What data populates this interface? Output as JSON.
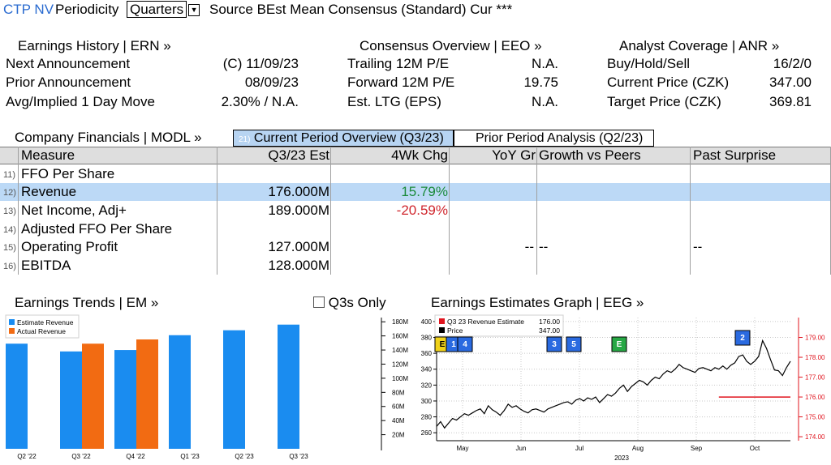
{
  "topbar": {
    "ticker": "CTP NV",
    "periodicity_label": "Periodicity",
    "periodicity_value": "Quarters",
    "source_text": "Source BEst Mean Consensus (Standard) Cur ***"
  },
  "earnings_history": {
    "title": "Earnings History | ERN »",
    "rows": [
      {
        "label": "Next Announcement",
        "value": "(C)  11/09/23"
      },
      {
        "label": "Prior Announcement",
        "value": "08/09/23"
      },
      {
        "label": "Avg/Implied 1 Day Move",
        "value": "2.30% / N.A."
      }
    ]
  },
  "consensus_overview": {
    "title": "Consensus Overview | EEO »",
    "rows": [
      {
        "label": "Trailing 12M P/E",
        "value": "N.A."
      },
      {
        "label": "Forward 12M P/E",
        "value": "19.75"
      },
      {
        "label": "Est. LTG (EPS)",
        "value": "N.A."
      }
    ]
  },
  "analyst_coverage": {
    "title": "Analyst Coverage | ANR »",
    "rows": [
      {
        "label": "Buy/Hold/Sell",
        "value": "16/2/0"
      },
      {
        "label": "Current Price (CZK)",
        "value": "347.00"
      },
      {
        "label": "Target Price (CZK)",
        "value": "369.81"
      }
    ]
  },
  "company_financials": {
    "title": "Company Financials | MODL »",
    "tabs": [
      {
        "num": "21)",
        "label": "Current Period Overview (Q3/23)"
      },
      {
        "num": "",
        "label": "Prior Period Analysis (Q2/23)"
      }
    ],
    "columns": [
      "Measure",
      "Q3/23 Est",
      "4Wk Chg",
      "YoY Gr",
      "Growth vs Peers",
      "Past Surprise"
    ],
    "rows": [
      {
        "num": "11)",
        "measure": "FFO Per Share",
        "est": "",
        "chg": "",
        "yoy": "",
        "peers": "",
        "surprise": ""
      },
      {
        "num": "12)",
        "measure": "Revenue",
        "est": "176.000M",
        "chg": "15.79%",
        "yoy": "",
        "peers": "",
        "surprise": ""
      },
      {
        "num": "13)",
        "measure": "Net Income, Adj+",
        "est": "189.000M",
        "chg": "-20.59%",
        "yoy": "",
        "peers": "",
        "surprise": ""
      },
      {
        "num": "14)",
        "measure": "Adjusted FFO Per Share",
        "est": "",
        "chg": "",
        "yoy": "",
        "peers": "",
        "surprise": ""
      },
      {
        "num": "15)",
        "measure": "Operating Profit",
        "est": "127.000M",
        "chg": "",
        "yoy": "--",
        "peers": "--",
        "surprise": "--"
      },
      {
        "num": "16)",
        "measure": "EBITDA",
        "est": "128.000M",
        "chg": "",
        "yoy": "",
        "peers": "",
        "surprise": ""
      }
    ]
  },
  "earnings_trends": {
    "title": "Earnings Trends | EM »",
    "checkbox_label": "Q3s Only",
    "checkbox_checked": false
  },
  "earnings_estimates_graph": {
    "title": "Earnings Estimates Graph | EEG »"
  },
  "colors": {
    "estimate": "#1a8cf0",
    "actual": "#f26b12",
    "price_line": "#000000",
    "estimate_line": "#e0141e",
    "right_axis": "#e0141e",
    "event_blue": "#2a6ae0",
    "event_yellow": "#f0d21a",
    "event_green": "#27a845"
  },
  "chart_data": [
    {
      "type": "bar",
      "title": "",
      "categories": [
        "Q2 '22",
        "Q3 '22",
        "Q4 '22",
        "Q1 '23",
        "Q2 '23",
        "Q3 '23"
      ],
      "series": [
        {
          "name": "Estimate Revenue",
          "values": [
            149,
            138,
            140,
            161,
            168,
            176
          ]
        },
        {
          "name": "Actual Revenue",
          "values": [
            null,
            149,
            155,
            null,
            null,
            null
          ]
        }
      ],
      "ylim": [
        0,
        186
      ],
      "yticks": [
        20,
        40,
        60,
        80,
        100,
        120,
        140,
        160,
        180
      ],
      "ytick_labels": [
        "20M",
        "40M",
        "60M",
        "80M",
        "100M",
        "120M",
        "140M",
        "160M",
        "180M"
      ],
      "legend": "top-left",
      "grid": false
    },
    {
      "type": "line",
      "title": "",
      "xlabel": "2023",
      "x_ticks": [
        "May",
        "Jun",
        "Jul",
        "Aug",
        "Sep",
        "Oct"
      ],
      "y_left_lim": [
        250,
        405
      ],
      "y_left_ticks": [
        260,
        280,
        300,
        320,
        340,
        360,
        380,
        400
      ],
      "y_right_lim": [
        173.8,
        180
      ],
      "y_right_ticks": [
        "174.00",
        "175.00",
        "176.00",
        "177.00",
        "178.00",
        "179.00"
      ],
      "legend": "top-left",
      "legend_entries": [
        {
          "name": "Q3 23 Revenue Estimate",
          "value": "176.00"
        },
        {
          "name": "Price",
          "value": "347.00"
        }
      ],
      "series": [
        {
          "name": "Price",
          "x": [
            0,
            2,
            4,
            6,
            8,
            10,
            12,
            14,
            16,
            18,
            20,
            22,
            24,
            26,
            28,
            30,
            32,
            34,
            36,
            38,
            40,
            42,
            44,
            46,
            48,
            50,
            52,
            54,
            56,
            58,
            60,
            62,
            64,
            66,
            68,
            70,
            72,
            74,
            76,
            78,
            80,
            82,
            84,
            86,
            88,
            90,
            92,
            94,
            96,
            98,
            100,
            102,
            104,
            106,
            108,
            110,
            112,
            114,
            116,
            118,
            120,
            122,
            124,
            126,
            128,
            130,
            132,
            134,
            136,
            138,
            140,
            142,
            144,
            146,
            148,
            150,
            152,
            154,
            156,
            158,
            160,
            162,
            164,
            166,
            168,
            170,
            172,
            174,
            176,
            178
          ],
          "values": [
            268,
            274,
            266,
            272,
            278,
            276,
            280,
            284,
            282,
            285,
            288,
            290,
            284,
            294,
            289,
            286,
            282,
            288,
            296,
            292,
            294,
            290,
            287,
            285,
            289,
            290,
            288,
            286,
            290,
            292,
            294,
            296,
            298,
            299,
            296,
            301,
            303,
            300,
            304,
            302,
            305,
            298,
            303,
            308,
            306,
            310,
            316,
            320,
            312,
            318,
            322,
            326,
            324,
            320,
            326,
            330,
            328,
            334,
            338,
            336,
            340,
            346,
            342,
            340,
            338,
            336,
            341,
            342,
            340,
            338,
            342,
            340,
            344,
            340,
            345,
            348,
            356,
            358,
            350,
            346,
            350,
            356,
            376,
            366,
            352,
            339,
            338,
            332,
            342,
            350
          ]
        },
        {
          "name": "Q3 23 Revenue Estimate",
          "values": [
            176.0
          ]
        }
      ],
      "events": [
        {
          "label": "E",
          "color": "yellow"
        },
        {
          "label": "1",
          "color": "blue"
        },
        {
          "label": "4",
          "color": "blue"
        },
        {
          "label": "3",
          "color": "blue"
        },
        {
          "label": "5",
          "color": "blue"
        },
        {
          "label": "E",
          "color": "green"
        },
        {
          "label": "2",
          "color": "blue"
        }
      ]
    }
  ]
}
